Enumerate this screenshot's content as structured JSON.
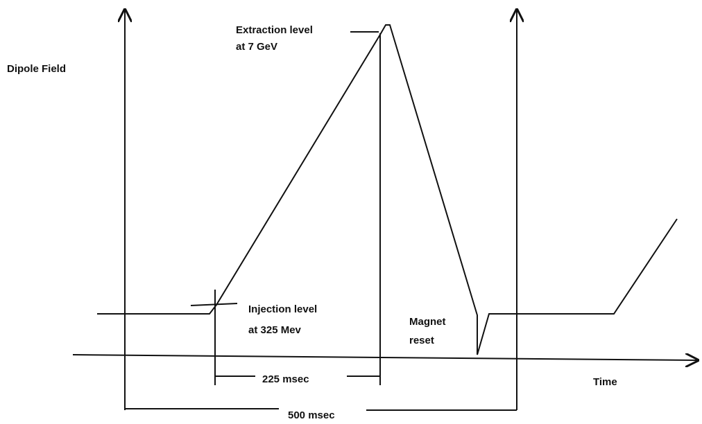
{
  "y_axis_label": "Dipole Field",
  "x_axis_label": "Time",
  "extraction": {
    "line1": "Extraction level",
    "line2": "at 7 GeV"
  },
  "injection": {
    "line1": "Injection level",
    "line2": "at 325 Mev"
  },
  "reset": {
    "line1": "Magnet",
    "line2": "reset"
  },
  "ramp_duration": "225 msec",
  "cycle_duration": "500 msec"
}
